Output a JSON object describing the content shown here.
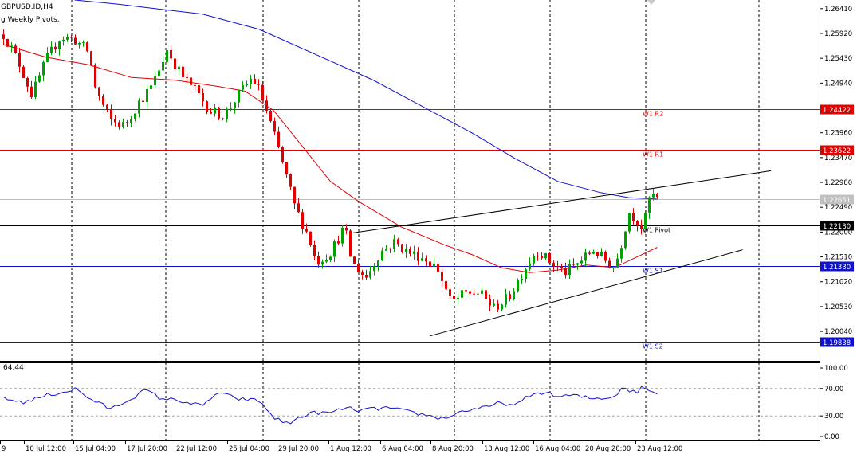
{
  "header": {
    "symbol": "GBPUSD.ID,H4",
    "indicator": "g Weekly Pivots."
  },
  "rsi": {
    "value_label": "64.44"
  },
  "colors": {
    "candle_up": "#00a000",
    "candle_down": "#e00000",
    "ma_fast": "#e00000",
    "ma_slow": "#1010d0",
    "rsi_line": "#1010d0",
    "pivot_red": "#e00000",
    "pivot_black": "#000000",
    "pivot_blue": "#1010d0",
    "bid_line": "#c0c0c0",
    "trendline": "#000000"
  },
  "chart_data": {
    "type": "candlestick",
    "symbol": "GBPUSD.ID",
    "timeframe": "H4",
    "price_axis_ticks": [
      "1.26410",
      "1.25920",
      "1.25430",
      "1.24940",
      "1.23960",
      "1.23470",
      "1.22980",
      "1.22490",
      "1.22000",
      "1.21510",
      "1.21020",
      "1.20530",
      "1.20040"
    ],
    "ylim": [
      1.1946,
      1.2658
    ],
    "time_labels": [
      "9",
      "10 Jul 12:00",
      "15 Jul 04:00",
      "17 Jul 20:00",
      "22 Jul 12:00",
      "25 Jul 04:00",
      "29 Jul 20:00",
      "1 Aug 12:00",
      "6 Aug 04:00",
      "8 Aug 20:00",
      "13 Aug 12:00",
      "16 Aug 04:00",
      "20 Aug 20:00",
      "23 Aug 12:00"
    ],
    "pivots": [
      {
        "name": "W1 R2",
        "price": 1.24422,
        "price_label": "1.24422",
        "style": "red"
      },
      {
        "name": "W1 R1",
        "price": 1.23622,
        "price_label": "1.23622",
        "style": "red"
      },
      {
        "name": "W1 Pivot",
        "price": 1.2213,
        "price_label": "1.22130",
        "style": "black"
      },
      {
        "name": "W1 S1",
        "price": 1.2133,
        "price_label": "1.21330",
        "style": "blue"
      },
      {
        "name": "W1 S2",
        "price": 1.19838,
        "price_label": "1.19838",
        "style": "blue"
      }
    ],
    "current_bid": {
      "price": 1.22651,
      "label": "1.22651"
    },
    "close_path": [
      [
        0,
        1.259
      ],
      [
        2,
        1.254
      ],
      [
        4,
        1.247
      ],
      [
        6,
        1.254
      ],
      [
        8,
        1.2585
      ],
      [
        10,
        1.258
      ],
      [
        12,
        1.2555
      ],
      [
        13,
        1.248
      ],
      [
        15,
        1.242
      ],
      [
        17,
        1.241
      ],
      [
        19,
        1.2455
      ],
      [
        21,
        1.249
      ],
      [
        23,
        1.256
      ],
      [
        25,
        1.251
      ],
      [
        27,
        1.248
      ],
      [
        29,
        1.244
      ],
      [
        31,
        1.243
      ],
      [
        33,
        1.247
      ],
      [
        35,
        1.2505
      ],
      [
        36,
        1.248
      ],
      [
        37,
        1.244
      ],
      [
        39,
        1.235
      ],
      [
        41,
        1.225
      ],
      [
        43,
        1.219
      ],
      [
        44,
        1.214
      ],
      [
        46,
        1.216
      ],
      [
        48,
        1.221
      ],
      [
        49,
        1.214
      ],
      [
        51,
        1.211
      ],
      [
        53,
        1.216
      ],
      [
        55,
        1.218
      ],
      [
        57,
        1.216
      ],
      [
        59,
        1.215
      ],
      [
        61,
        1.213
      ],
      [
        63,
        1.206
      ],
      [
        65,
        1.208
      ],
      [
        67,
        1.208
      ],
      [
        69,
        1.205
      ],
      [
        71,
        1.207
      ],
      [
        73,
        1.212
      ],
      [
        75,
        1.2165
      ],
      [
        77,
        1.214
      ],
      [
        79,
        1.212
      ],
      [
        81,
        1.214
      ],
      [
        83,
        1.2165
      ],
      [
        85,
        1.214
      ],
      [
        86,
        1.213
      ],
      [
        87,
        1.218
      ],
      [
        88,
        1.224
      ],
      [
        89,
        1.2225
      ],
      [
        90,
        1.2205
      ],
      [
        91,
        1.2275
      ],
      [
        92,
        1.2266
      ]
    ],
    "ma_fast_path": [
      [
        0,
        1.257
      ],
      [
        6,
        1.2545
      ],
      [
        12,
        1.253
      ],
      [
        18,
        1.2505
      ],
      [
        24,
        1.25
      ],
      [
        30,
        1.2488
      ],
      [
        34,
        1.2478
      ],
      [
        38,
        1.244
      ],
      [
        42,
        1.237
      ],
      [
        46,
        1.23
      ],
      [
        50,
        1.226
      ],
      [
        56,
        1.221
      ],
      [
        62,
        1.2175
      ],
      [
        66,
        1.2155
      ],
      [
        70,
        1.213
      ],
      [
        74,
        1.212
      ],
      [
        78,
        1.2125
      ],
      [
        82,
        1.2135
      ],
      [
        86,
        1.213
      ],
      [
        89,
        1.215
      ],
      [
        92,
        1.217
      ]
    ],
    "ma_slow_path": [
      [
        10,
        1.2658
      ],
      [
        16,
        1.265
      ],
      [
        22,
        1.264
      ],
      [
        28,
        1.263
      ],
      [
        36,
        1.26
      ],
      [
        44,
        1.255
      ],
      [
        52,
        1.25
      ],
      [
        60,
        1.244
      ],
      [
        66,
        1.2395
      ],
      [
        72,
        1.2345
      ],
      [
        78,
        1.23
      ],
      [
        84,
        1.2278
      ],
      [
        88,
        1.2268
      ],
      [
        92,
        1.2265
      ]
    ],
    "trendlines": [
      {
        "from": [
          49,
          1.2198
        ],
        "to": [
          108,
          1.2321
        ]
      },
      {
        "from": [
          60,
          1.1995
        ],
        "to": [
          104,
          1.2165
        ]
      }
    ],
    "rsi": {
      "ylim": [
        0,
        100
      ],
      "ticks": [
        "100.00",
        "70.00",
        "30.00",
        "0.00"
      ],
      "levels": [
        70,
        30
      ],
      "path": [
        [
          0,
          55
        ],
        [
          3,
          50
        ],
        [
          6,
          60
        ],
        [
          9,
          66
        ],
        [
          10,
          70
        ],
        [
          12,
          56
        ],
        [
          15,
          40
        ],
        [
          17,
          50
        ],
        [
          20,
          68
        ],
        [
          22,
          56
        ],
        [
          25,
          52
        ],
        [
          28,
          44
        ],
        [
          30,
          64
        ],
        [
          33,
          55
        ],
        [
          36,
          52
        ],
        [
          38,
          28
        ],
        [
          40,
          18
        ],
        [
          42,
          30
        ],
        [
          44,
          35
        ],
        [
          46,
          34
        ],
        [
          48,
          42
        ],
        [
          50,
          38
        ],
        [
          54,
          42
        ],
        [
          56,
          38
        ],
        [
          58,
          34
        ],
        [
          62,
          26
        ],
        [
          64,
          35
        ],
        [
          66,
          40
        ],
        [
          68,
          42
        ],
        [
          70,
          50
        ],
        [
          72,
          44
        ],
        [
          74,
          60
        ],
        [
          76,
          65
        ],
        [
          78,
          58
        ],
        [
          80,
          60
        ],
        [
          83,
          55
        ],
        [
          86,
          58
        ],
        [
          87,
          72
        ],
        [
          88,
          68
        ],
        [
          89,
          63
        ],
        [
          90,
          74
        ],
        [
          91,
          65
        ],
        [
          92,
          64
        ]
      ]
    }
  }
}
